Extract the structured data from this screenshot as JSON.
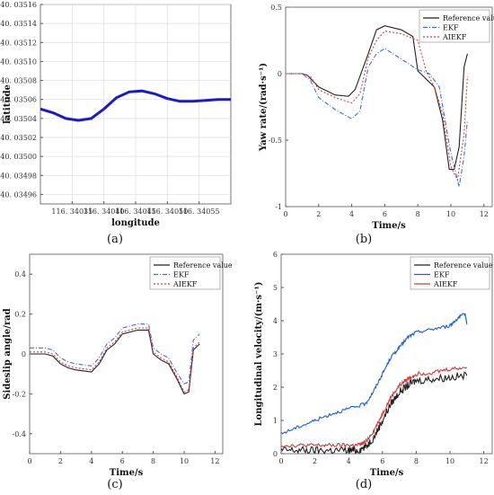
{
  "chart_data": [
    {
      "id": "a",
      "type": "line",
      "panel_label": "(a)",
      "xlabel": "longitude",
      "ylabel": "latitude",
      "xlim": [
        116.3403,
        116.3406
      ],
      "ylim": [
        40.03495,
        40.03516
      ],
      "xticks": [
        116.34035,
        116.3404,
        116.34045,
        116.3405,
        116.34055
      ],
      "xtick_labels": [
        "116. 34035",
        "116. 34040",
        "116. 34045",
        "116. 34050",
        "116. 34055"
      ],
      "yticks": [
        40.03496,
        40.03498,
        40.035,
        40.03502,
        40.03504,
        40.03506,
        40.03508,
        40.0351,
        40.03512,
        40.03514,
        40.03516
      ],
      "ytick_labels": [
        "40. 03496",
        "40. 03498",
        "40. 03500",
        "40. 03502",
        "40. 03504",
        "40. 03506",
        "40. 03508",
        "40. 03510",
        "40. 03512",
        "40. 03514",
        "40. 03516"
      ],
      "grid": true,
      "series": [
        {
          "color": "#1a1acc",
          "x": [
            116.3403,
            116.34032,
            116.34034,
            116.34036,
            116.34038,
            116.3404,
            116.34042,
            116.34044,
            116.34046,
            116.34048,
            116.3405,
            116.34052,
            116.34054,
            116.34056,
            116.34058,
            116.3406
          ],
          "y": [
            40.03505,
            40.035046,
            40.03504,
            40.035038,
            40.03504,
            40.03505,
            40.035062,
            40.035068,
            40.035069,
            40.035066,
            40.035061,
            40.035058,
            40.035058,
            40.035059,
            40.03506,
            40.03506
          ]
        }
      ]
    },
    {
      "id": "b",
      "type": "line",
      "panel_label": "(b)",
      "xlabel": "Time/s",
      "ylabel": "Yaw rate/(rad·s⁻¹)",
      "xlim": [
        0,
        12.5
      ],
      "ylim": [
        -1.0,
        0.5
      ],
      "xticks": [
        0,
        2,
        4,
        6,
        8,
        10,
        12
      ],
      "yticks": [
        -1.0,
        -0.5,
        0.0,
        0.5
      ],
      "ytick_labels": [
        "-1",
        "-0.5",
        "0",
        "0.5"
      ],
      "grid": false,
      "legend": "top-right",
      "series": [
        {
          "name": "Reference value",
          "color": "#222222",
          "dash": "",
          "x": [
            0,
            1,
            1.3,
            2,
            3,
            3.8,
            4.2,
            5,
            5.5,
            6,
            7,
            7.7,
            8,
            9,
            9.5,
            9.9,
            10.2,
            10.5,
            10.8,
            11
          ],
          "y": [
            0,
            0,
            -0.01,
            -0.1,
            -0.16,
            -0.17,
            -0.12,
            0.15,
            0.33,
            0.36,
            0.33,
            0.28,
            0.02,
            -0.1,
            -0.35,
            -0.72,
            -0.72,
            -0.55,
            0.05,
            0.15
          ]
        },
        {
          "name": "EKF",
          "color": "#3a6fdc",
          "dash": "5,2,1,2",
          "x": [
            0,
            1,
            1.5,
            2,
            3,
            4,
            4.5,
            5,
            5.5,
            6,
            7,
            8,
            8.7,
            9.3,
            10,
            10.5,
            10.8,
            11
          ],
          "y": [
            0,
            0,
            -0.05,
            -0.18,
            -0.27,
            -0.34,
            -0.28,
            0.05,
            0.15,
            0.19,
            0.11,
            0.03,
            0.0,
            -0.1,
            -0.6,
            -0.85,
            -0.62,
            -0.35
          ]
        },
        {
          "name": "AIEKF",
          "color": "#e03a3a",
          "dash": "2,2",
          "x": [
            0,
            1,
            1.5,
            2,
            3,
            4,
            4.5,
            5,
            5.5,
            6,
            7,
            8,
            8.5,
            9,
            9.5,
            10,
            10.4,
            10.8,
            11
          ],
          "y": [
            0,
            0,
            -0.02,
            -0.12,
            -0.18,
            -0.22,
            -0.15,
            0.12,
            0.25,
            0.32,
            0.3,
            0.25,
            0.02,
            -0.1,
            -0.3,
            -0.7,
            -0.8,
            -0.45,
            -0.02
          ]
        }
      ]
    },
    {
      "id": "c",
      "type": "line",
      "panel_label": "(c)",
      "xlabel": "Time/s",
      "ylabel": "Sideslip angle/rad",
      "xlim": [
        0,
        12.5
      ],
      "ylim": [
        -0.5,
        0.5
      ],
      "xticks": [
        0,
        2,
        4,
        6,
        8,
        10,
        12
      ],
      "yticks": [
        -0.4,
        -0.2,
        0.0,
        0.2,
        0.4
      ],
      "ytick_labels": [
        "-0.4",
        "-0.2",
        "0",
        "0.2",
        "0.4"
      ],
      "grid": false,
      "legend": "top-right",
      "series": [
        {
          "name": "Reference value",
          "color": "#222222",
          "dash": "",
          "x": [
            0,
            1,
            1.5,
            2,
            2.5,
            3,
            4,
            4.5,
            5,
            5.5,
            6,
            7,
            7.7,
            8,
            8.5,
            9,
            9.5,
            10,
            10.3,
            10.6,
            11
          ],
          "y": [
            0,
            0,
            -0.01,
            -0.05,
            -0.07,
            -0.08,
            -0.09,
            -0.05,
            0.02,
            0.05,
            0.1,
            0.12,
            0.12,
            0.0,
            -0.03,
            -0.05,
            -0.12,
            -0.2,
            -0.19,
            0.02,
            0.05
          ]
        },
        {
          "name": "EKF",
          "color": "#3a6fdc",
          "dash": "5,2,1,2",
          "x": [
            0,
            1,
            1.5,
            2,
            2.5,
            3,
            4,
            4.5,
            5,
            5.5,
            6,
            7,
            7.7,
            8,
            8.5,
            9,
            9.5,
            10,
            10.3,
            10.6,
            11
          ],
          "y": [
            0.03,
            0.03,
            0.02,
            -0.02,
            -0.04,
            -0.05,
            -0.06,
            -0.02,
            0.05,
            0.08,
            0.13,
            0.15,
            0.15,
            0.03,
            0.0,
            -0.02,
            -0.09,
            -0.15,
            -0.14,
            0.07,
            0.1
          ]
        },
        {
          "name": "AIEKF",
          "color": "#e03a3a",
          "dash": "2,2",
          "x": [
            0,
            1,
            1.5,
            2,
            2.5,
            3,
            4,
            4.5,
            5,
            5.5,
            6,
            7,
            7.7,
            8,
            8.5,
            9,
            9.5,
            10,
            10.3,
            10.6,
            11
          ],
          "y": [
            0.01,
            0.01,
            0.0,
            -0.04,
            -0.06,
            -0.07,
            -0.08,
            -0.04,
            0.03,
            0.06,
            0.11,
            0.13,
            0.13,
            0.01,
            -0.02,
            -0.04,
            -0.11,
            -0.19,
            -0.18,
            0.03,
            0.06
          ]
        }
      ]
    },
    {
      "id": "d",
      "type": "line",
      "panel_label": "(d)",
      "xlabel": "Time/s",
      "ylabel": "Longitudinal velocity/(m·s⁻¹)",
      "xlim": [
        0,
        12.5
      ],
      "ylim": [
        0,
        6
      ],
      "xticks": [
        0,
        2,
        4,
        6,
        8,
        10,
        12
      ],
      "yticks": [
        0,
        1,
        2,
        3,
        4,
        5,
        6
      ],
      "grid": false,
      "legend": "top-right",
      "series": [
        {
          "name": "Reference value",
          "color": "#222222",
          "dash": "",
          "noise": 0.12,
          "x": [
            0,
            1,
            2,
            3,
            4,
            4.5,
            5,
            5.5,
            6,
            6.5,
            7,
            7.5,
            8,
            9,
            10,
            11
          ],
          "y": [
            0.1,
            0.1,
            0.1,
            0.1,
            0.1,
            0.1,
            0.2,
            0.5,
            1.0,
            1.5,
            1.85,
            2.05,
            2.2,
            2.25,
            2.3,
            2.35
          ]
        },
        {
          "name": "EKF",
          "color": "#1f5ae0",
          "dash": "",
          "noise": 0.05,
          "x": [
            0,
            1,
            2,
            3,
            4,
            5,
            5.5,
            6,
            6.5,
            7,
            7.5,
            8,
            9,
            10,
            10.5,
            10.9,
            11
          ],
          "y": [
            0.6,
            0.8,
            1.0,
            1.2,
            1.35,
            1.5,
            1.9,
            2.4,
            2.9,
            3.2,
            3.5,
            3.65,
            3.75,
            3.85,
            4.1,
            4.2,
            3.9
          ]
        },
        {
          "name": "AIEKF",
          "color": "#d23a3a",
          "dash": "",
          "noise": 0.06,
          "x": [
            0,
            1,
            2,
            3,
            4,
            4.5,
            5,
            5.5,
            6,
            6.5,
            7,
            7.5,
            8,
            9,
            10,
            11
          ],
          "y": [
            0.25,
            0.25,
            0.25,
            0.25,
            0.25,
            0.25,
            0.35,
            0.7,
            1.2,
            1.7,
            2.05,
            2.25,
            2.4,
            2.45,
            2.55,
            2.6
          ]
        }
      ]
    }
  ]
}
